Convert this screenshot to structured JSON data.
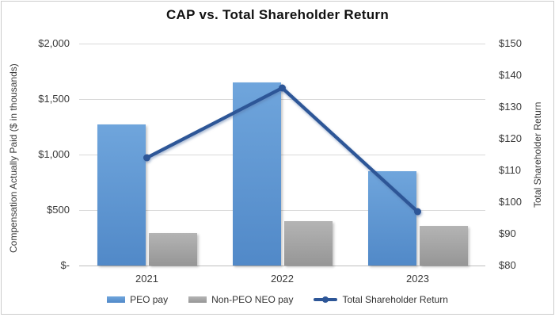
{
  "chart_data": {
    "type": "bar-line-combo",
    "title": "CAP vs. Total Shareholder Return",
    "categories": [
      "2021",
      "2022",
      "2023"
    ],
    "series": [
      {
        "name": "PEO pay",
        "type": "bar",
        "axis": "left",
        "color": "#5B9BD5",
        "color_top": "#6FA5DC",
        "color_bottom": "#5189C8",
        "values": [
          1275,
          1650,
          850
        ]
      },
      {
        "name": "Non-PEO NEO pay",
        "type": "bar",
        "axis": "left",
        "color": "#A6A6A6",
        "color_top": "#B4B4B4",
        "color_bottom": "#969696",
        "values": [
          295,
          400,
          355
        ]
      },
      {
        "name": "Total Shareholder Return",
        "type": "line",
        "axis": "right",
        "color": "#2D5697",
        "marker": "circle",
        "values": [
          114,
          136,
          97
        ]
      }
    ],
    "left_axis": {
      "title": "Compensation Actually Paid ($ in thousands)",
      "min": 0,
      "max": 2000,
      "step": 500,
      "tick_labels": [
        "$2,000",
        "$1,500",
        "$1,000",
        "$500",
        "$-"
      ]
    },
    "right_axis": {
      "title": "Total Shareholder Return",
      "min": 80,
      "max": 150,
      "step": 10,
      "tick_labels": [
        "$150",
        "$140",
        "$130",
        "$120",
        "$110",
        "$100",
        "$90",
        "$80"
      ]
    },
    "legend": {
      "position": "bottom"
    },
    "grid": true
  }
}
